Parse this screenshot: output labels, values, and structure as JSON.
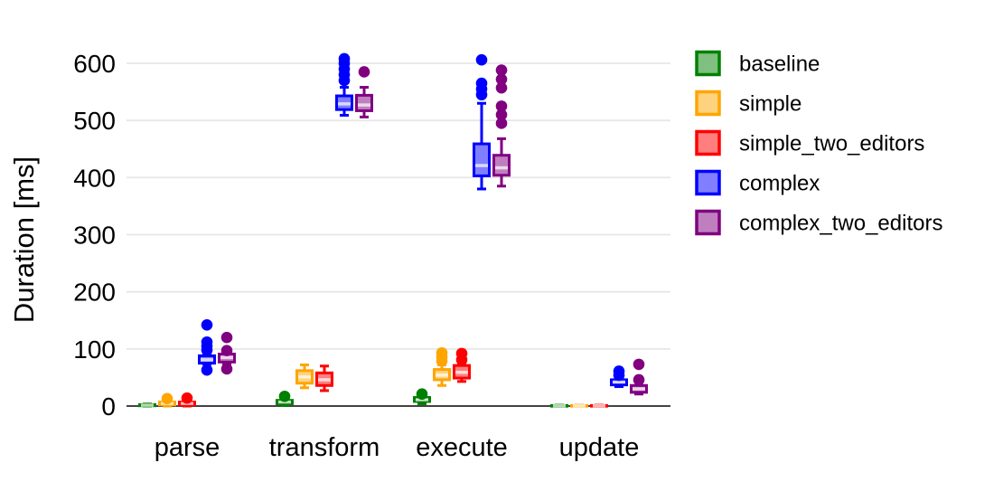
{
  "chart_data": {
    "type": "boxplot",
    "title": "",
    "xlabel": "",
    "ylabel": "Duration [ms]",
    "categories": [
      "parse",
      "transform",
      "execute",
      "update"
    ],
    "y_ticks": [
      0,
      100,
      200,
      300,
      400,
      500,
      600
    ],
    "ylim": [
      0,
      620
    ],
    "grid": true,
    "legend_position": "right",
    "background_color": "#ffffff",
    "grid_color": "#e7e7e7",
    "axis_line_color": "#444444",
    "text_color": "#000000",
    "series": [
      {
        "name": "baseline",
        "color": "#008000",
        "boxes": [
          {
            "category": "parse",
            "whisker_low": 0,
            "q1": 0.5,
            "median": 1.5,
            "q3": 2.5,
            "whisker_high": 3.5,
            "outliers": []
          },
          {
            "category": "transform",
            "whisker_low": 1,
            "q1": 4,
            "median": 7,
            "q3": 10,
            "whisker_high": 13,
            "outliers": [
              17
            ]
          },
          {
            "category": "execute",
            "whisker_low": 4,
            "q1": 8,
            "median": 11,
            "q3": 15,
            "whisker_high": 17,
            "outliers": [
              21
            ]
          },
          {
            "category": "update",
            "whisker_low": 0,
            "q1": 0,
            "median": 0.5,
            "q3": 1,
            "whisker_high": 1.5,
            "outliers": []
          }
        ]
      },
      {
        "name": "simple",
        "color": "#FFA500",
        "boxes": [
          {
            "category": "parse",
            "whisker_low": 0,
            "q1": 2,
            "median": 4.5,
            "q3": 7,
            "whisker_high": 10,
            "outliers": [
              13
            ]
          },
          {
            "category": "transform",
            "whisker_low": 32,
            "q1": 40,
            "median": 51,
            "q3": 62,
            "whisker_high": 72,
            "outliers": []
          },
          {
            "category": "execute",
            "whisker_low": 36,
            "q1": 46,
            "median": 54,
            "q3": 64,
            "whisker_high": 72,
            "outliers": [
              79,
              86,
              93
            ]
          },
          {
            "category": "update",
            "whisker_low": 0,
            "q1": 0,
            "median": 0.5,
            "q3": 1,
            "whisker_high": 1.5,
            "outliers": []
          }
        ]
      },
      {
        "name": "simple_two_editors",
        "color": "#FF0000",
        "boxes": [
          {
            "category": "parse",
            "whisker_low": 0,
            "q1": 2,
            "median": 4.5,
            "q3": 7,
            "whisker_high": 9.5,
            "outliers": [
              14
            ]
          },
          {
            "category": "transform",
            "whisker_low": 27,
            "q1": 36,
            "median": 46,
            "q3": 58,
            "whisker_high": 70,
            "outliers": []
          },
          {
            "category": "execute",
            "whisker_low": 43,
            "q1": 49,
            "median": 59,
            "q3": 71,
            "whisker_high": 75,
            "outliers": [
              81,
              92
            ]
          },
          {
            "category": "update",
            "whisker_low": 0,
            "q1": 0,
            "median": 0.5,
            "q3": 1,
            "whisker_high": 1.5,
            "outliers": []
          }
        ]
      },
      {
        "name": "complex",
        "color": "#0000FF",
        "boxes": [
          {
            "category": "parse",
            "whisker_low": 73,
            "q1": 75,
            "median": 81,
            "q3": 88,
            "whisker_high": 92,
            "outliers": [
              63,
              98,
              105,
              112,
              142
            ]
          },
          {
            "category": "transform",
            "whisker_low": 509,
            "q1": 519,
            "median": 529,
            "q3": 543,
            "whisker_high": 558,
            "outliers": [
              570,
              580,
              590,
              600,
              608
            ]
          },
          {
            "category": "execute",
            "whisker_low": 380,
            "q1": 403,
            "median": 421,
            "q3": 459,
            "whisker_high": 530,
            "outliers": [
              545,
              555,
              565,
              606
            ]
          },
          {
            "category": "update",
            "whisker_low": 34,
            "q1": 37,
            "median": 42,
            "q3": 46,
            "whisker_high": 49,
            "outliers": [
              54,
              61
            ]
          }
        ]
      },
      {
        "name": "complex_two_editors",
        "color": "#800080",
        "boxes": [
          {
            "category": "parse",
            "whisker_low": 73,
            "q1": 77,
            "median": 85,
            "q3": 91,
            "whisker_high": 95,
            "outliers": [
              65,
              97,
              120
            ]
          },
          {
            "category": "transform",
            "whisker_low": 506,
            "q1": 517,
            "median": 527,
            "q3": 544,
            "whisker_high": 558,
            "outliers": [
              585
            ]
          },
          {
            "category": "execute",
            "whisker_low": 385,
            "q1": 404,
            "median": 417,
            "q3": 439,
            "whisker_high": 468,
            "outliers": [
              495,
              510,
              525,
              557,
              572,
              588
            ]
          },
          {
            "category": "update",
            "whisker_low": 21,
            "q1": 24,
            "median": 30,
            "q3": 36,
            "whisker_high": 41,
            "outliers": [
              46,
              73
            ]
          }
        ]
      }
    ]
  }
}
